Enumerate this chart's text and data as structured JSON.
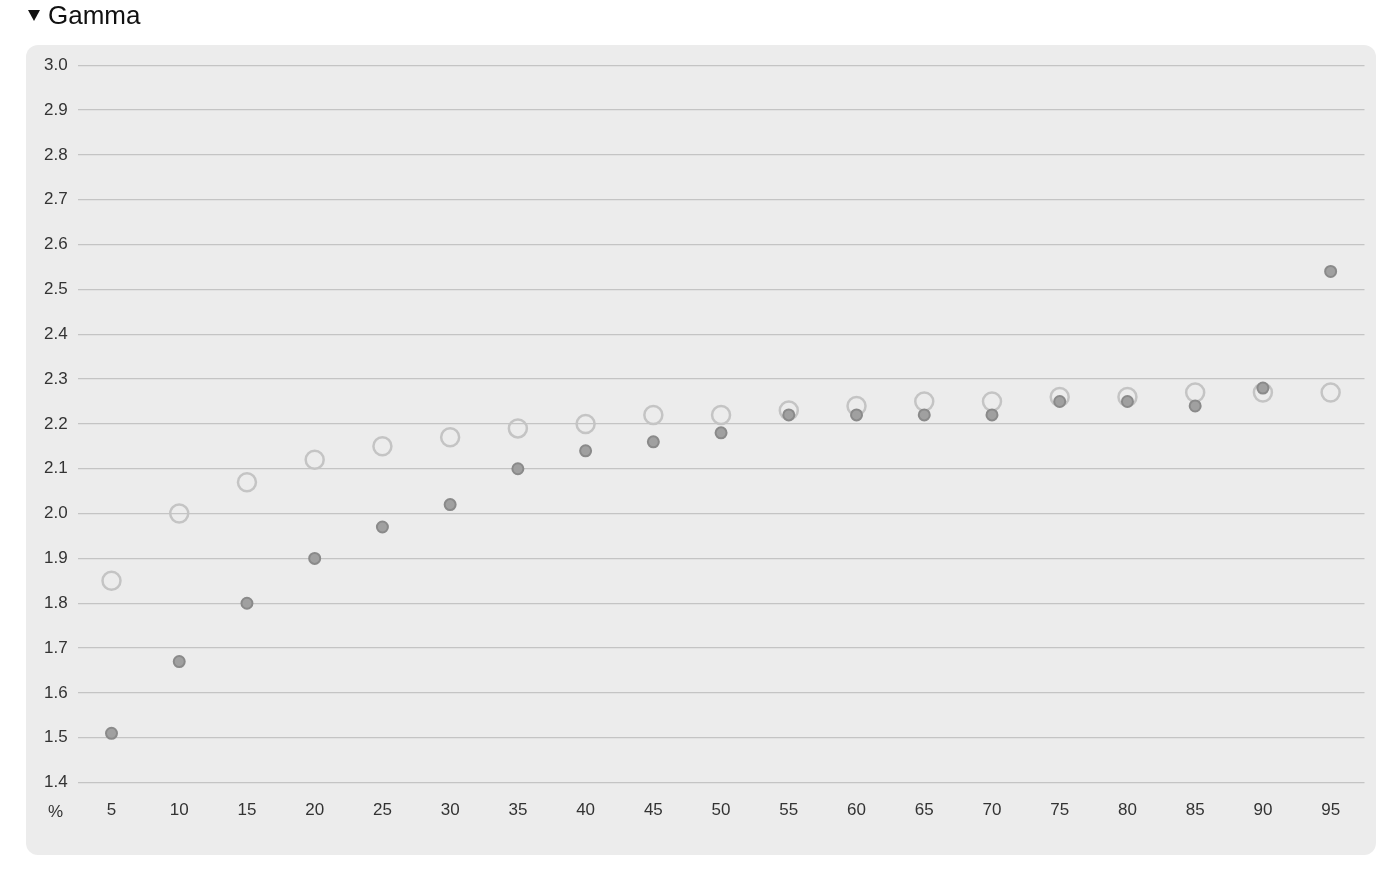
{
  "chart_data": {
    "type": "scatter",
    "title": "Gamma",
    "xlabel": "%",
    "categories": [
      "5",
      "10",
      "15",
      "20",
      "25",
      "30",
      "35",
      "40",
      "45",
      "50",
      "55",
      "60",
      "65",
      "70",
      "75",
      "80",
      "85",
      "90",
      "95"
    ],
    "series": [
      {
        "color": "#c4c4c4",
        "values": [
          1.85,
          2.0,
          2.07,
          2.12,
          2.15,
          2.17,
          2.19,
          2.2,
          2.22,
          2.22,
          2.23,
          2.24,
          2.25,
          2.25,
          2.26,
          2.26,
          2.27,
          2.27,
          2.27
        ]
      },
      {
        "color": "#a0a0a0",
        "values": [
          1.51,
          1.67,
          1.8,
          1.9,
          1.97,
          2.02,
          2.1,
          2.14,
          2.16,
          2.18,
          2.22,
          2.22,
          2.22,
          2.22,
          2.25,
          2.25,
          2.24,
          2.28,
          2.54
        ]
      }
    ],
    "ylim": [
      1.4,
      3.0
    ],
    "yticks": [
      {
        "value": 1.4,
        "label": "1.4"
      },
      {
        "value": 1.5,
        "label": "1.5"
      },
      {
        "value": 1.6,
        "label": "1.6"
      },
      {
        "value": 1.7,
        "label": "1.7"
      },
      {
        "value": 1.8,
        "label": "1.8"
      },
      {
        "value": 1.9,
        "label": "1.9"
      },
      {
        "value": 2.0,
        "label": "2.0"
      },
      {
        "value": 2.1,
        "label": "2.1"
      },
      {
        "value": 2.2,
        "label": "2.2"
      },
      {
        "value": 2.3,
        "label": "2.3"
      },
      {
        "value": 2.4,
        "label": "2.4"
      },
      {
        "value": 2.5,
        "label": "2.5"
      },
      {
        "value": 2.6,
        "label": "2.6"
      },
      {
        "value": 2.7,
        "label": "2.7"
      },
      {
        "value": 2.8,
        "label": "2.8"
      },
      {
        "value": 2.9,
        "label": "2.9"
      },
      {
        "value": 3.0,
        "label": "3.0"
      }
    ],
    "grid": "y",
    "legend": false,
    "marker": "circle"
  }
}
